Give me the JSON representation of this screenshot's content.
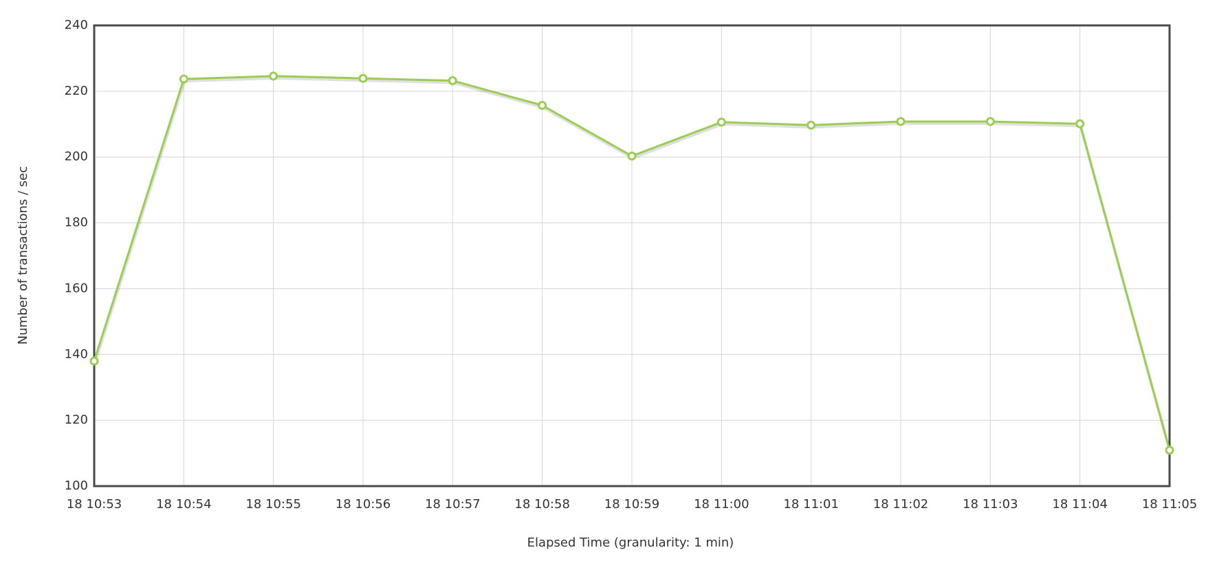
{
  "chart_data": {
    "type": "line",
    "x_label": "Elapsed Time (granularity: 1 min)",
    "y_label": "Number of transactions / sec",
    "categories": [
      "18 10:53",
      "18 10:54",
      "18 10:55",
      "18 10:56",
      "18 10:57",
      "18 10:58",
      "18 10:59",
      "18 11:00",
      "18 11:01",
      "18 11:02",
      "18 11:03",
      "18 11:04",
      "18 11:05"
    ],
    "series": [
      {
        "color": "#9acd50",
        "values": [
          138,
          223.7,
          224.6,
          223.9,
          223.2,
          215.7,
          200.3,
          210.6,
          209.7,
          210.8,
          210.8,
          210.1,
          110.9
        ]
      }
    ],
    "ylim": [
      100,
      240
    ],
    "yticks": [
      100,
      120,
      140,
      160,
      180,
      200,
      220,
      240
    ],
    "grid": true
  }
}
